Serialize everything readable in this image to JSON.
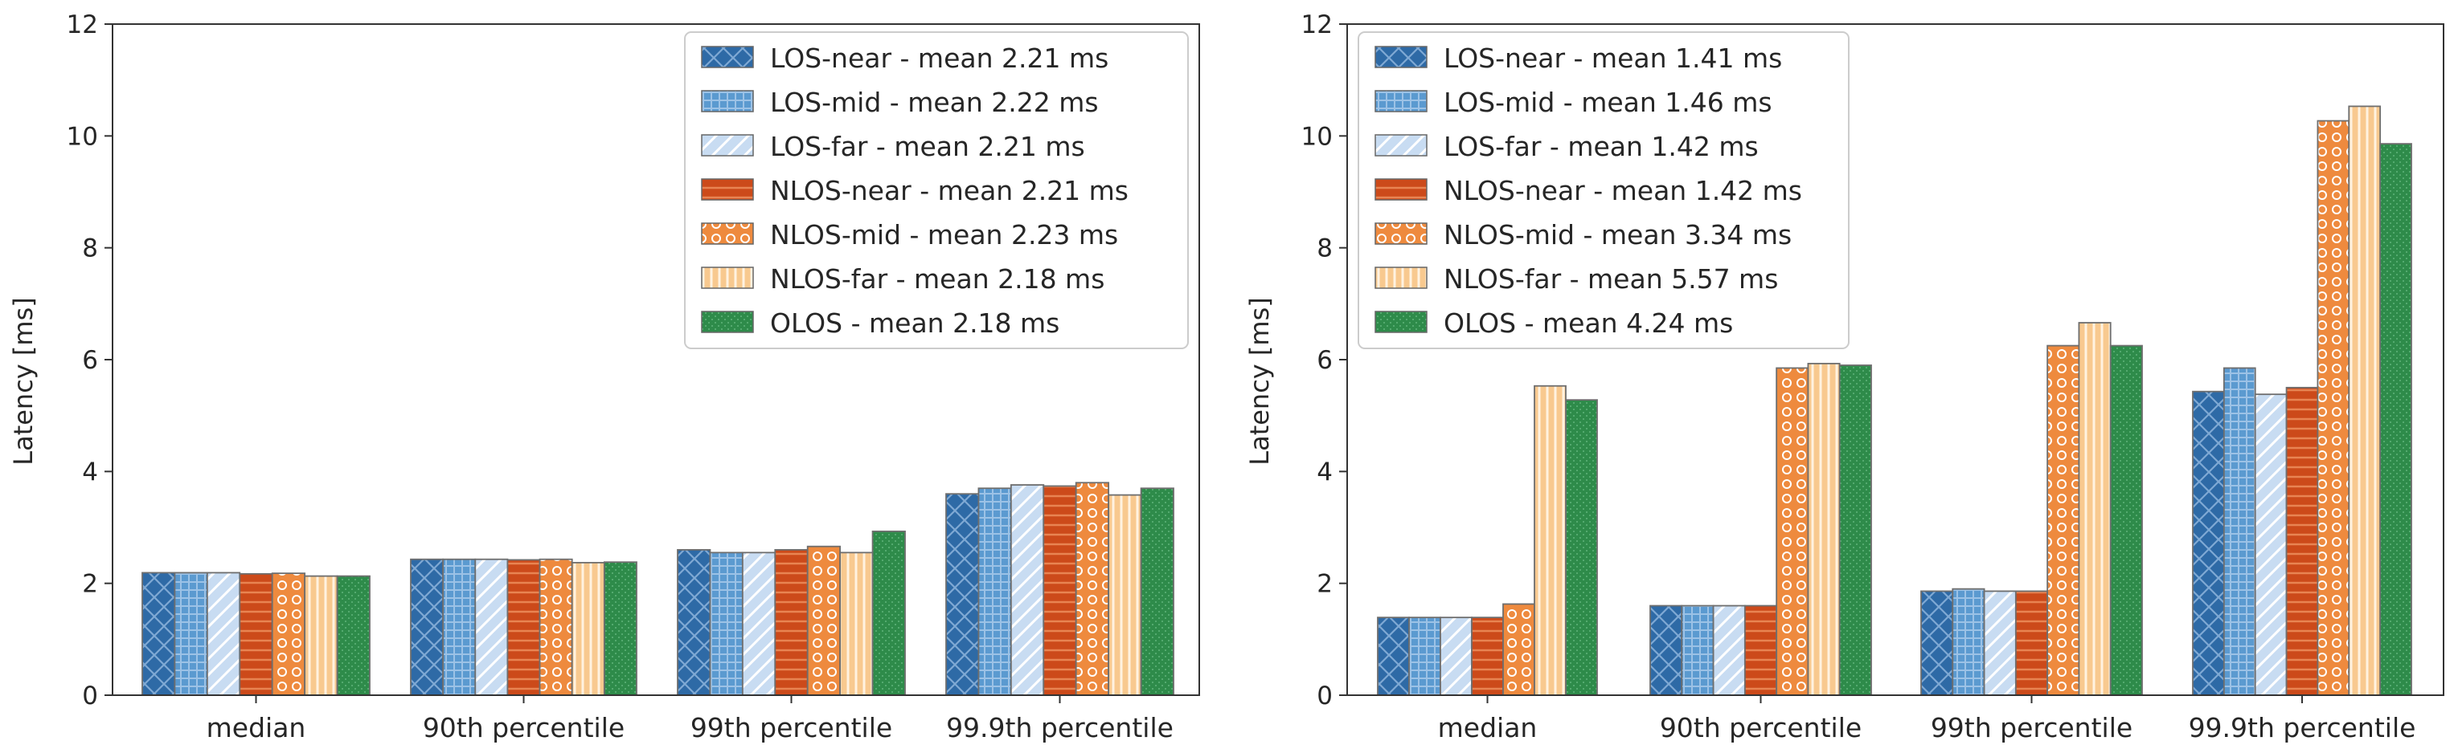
{
  "colors": {
    "LOS-near": "#2e6aa6",
    "LOS-mid": "#5b9ad0",
    "LOS-far": "#c8dcf2",
    "NLOS-near": "#cc4a1a",
    "NLOS-mid": "#ee8a3e",
    "NLOS-far": "#f8c98f",
    "OLOS": "#2e8b4a"
  },
  "chart_data": [
    {
      "type": "bar",
      "title": "",
      "xlabel": "",
      "ylabel": "Latency [ms]",
      "ylim": [
        0,
        12
      ],
      "yticks": [
        "0",
        "2",
        "4",
        "6",
        "8",
        "10",
        "12"
      ],
      "categories": [
        "median",
        "90th percentile",
        "99th percentile",
        "99.9th percentile"
      ],
      "legend_position": "top-right",
      "series": [
        {
          "name": "LOS-near",
          "legend": "LOS-near - mean 2.21 ms",
          "values": [
            2.19,
            2.43,
            2.6,
            3.6
          ]
        },
        {
          "name": "LOS-mid",
          "legend": "LOS-mid - mean 2.22 ms",
          "values": [
            2.19,
            2.43,
            2.55,
            3.7
          ]
        },
        {
          "name": "LOS-far",
          "legend": "LOS-far - mean 2.21 ms",
          "values": [
            2.19,
            2.43,
            2.55,
            3.76
          ]
        },
        {
          "name": "NLOS-near",
          "legend": "NLOS-near - mean 2.21 ms",
          "values": [
            2.17,
            2.42,
            2.6,
            3.74
          ]
        },
        {
          "name": "NLOS-mid",
          "legend": "NLOS-mid - mean 2.23 ms",
          "values": [
            2.18,
            2.43,
            2.66,
            3.8
          ]
        },
        {
          "name": "NLOS-far",
          "legend": "NLOS-far - mean 2.18 ms",
          "values": [
            2.13,
            2.37,
            2.55,
            3.58
          ]
        },
        {
          "name": "OLOS",
          "legend": "OLOS - mean 2.18 ms",
          "values": [
            2.13,
            2.38,
            2.93,
            3.7
          ]
        }
      ]
    },
    {
      "type": "bar",
      "title": "",
      "xlabel": "",
      "ylabel": "Latency [ms]",
      "ylim": [
        0,
        12
      ],
      "yticks": [
        "0",
        "2",
        "4",
        "6",
        "8",
        "10",
        "12"
      ],
      "categories": [
        "median",
        "90th percentile",
        "99th percentile",
        "99.9th percentile"
      ],
      "legend_position": "top-left",
      "series": [
        {
          "name": "LOS-near",
          "legend": "LOS-near - mean 1.41 ms",
          "values": [
            1.39,
            1.6,
            1.86,
            5.43
          ]
        },
        {
          "name": "LOS-mid",
          "legend": "LOS-mid - mean 1.46 ms",
          "values": [
            1.39,
            1.6,
            1.9,
            5.85
          ]
        },
        {
          "name": "LOS-far",
          "legend": "LOS-far - mean 1.42 ms",
          "values": [
            1.39,
            1.6,
            1.86,
            5.38
          ]
        },
        {
          "name": "NLOS-near",
          "legend": "NLOS-near - mean 1.42 ms",
          "values": [
            1.39,
            1.6,
            1.86,
            5.5
          ]
        },
        {
          "name": "NLOS-mid",
          "legend": "NLOS-mid - mean 3.34 ms",
          "values": [
            1.63,
            5.85,
            6.25,
            10.27
          ]
        },
        {
          "name": "NLOS-far",
          "legend": "NLOS-far - mean 5.57 ms",
          "values": [
            5.53,
            5.93,
            6.66,
            10.53
          ]
        },
        {
          "name": "OLOS",
          "legend": "OLOS - mean 4.24 ms",
          "values": [
            5.28,
            5.9,
            6.25,
            9.86
          ]
        }
      ]
    }
  ]
}
